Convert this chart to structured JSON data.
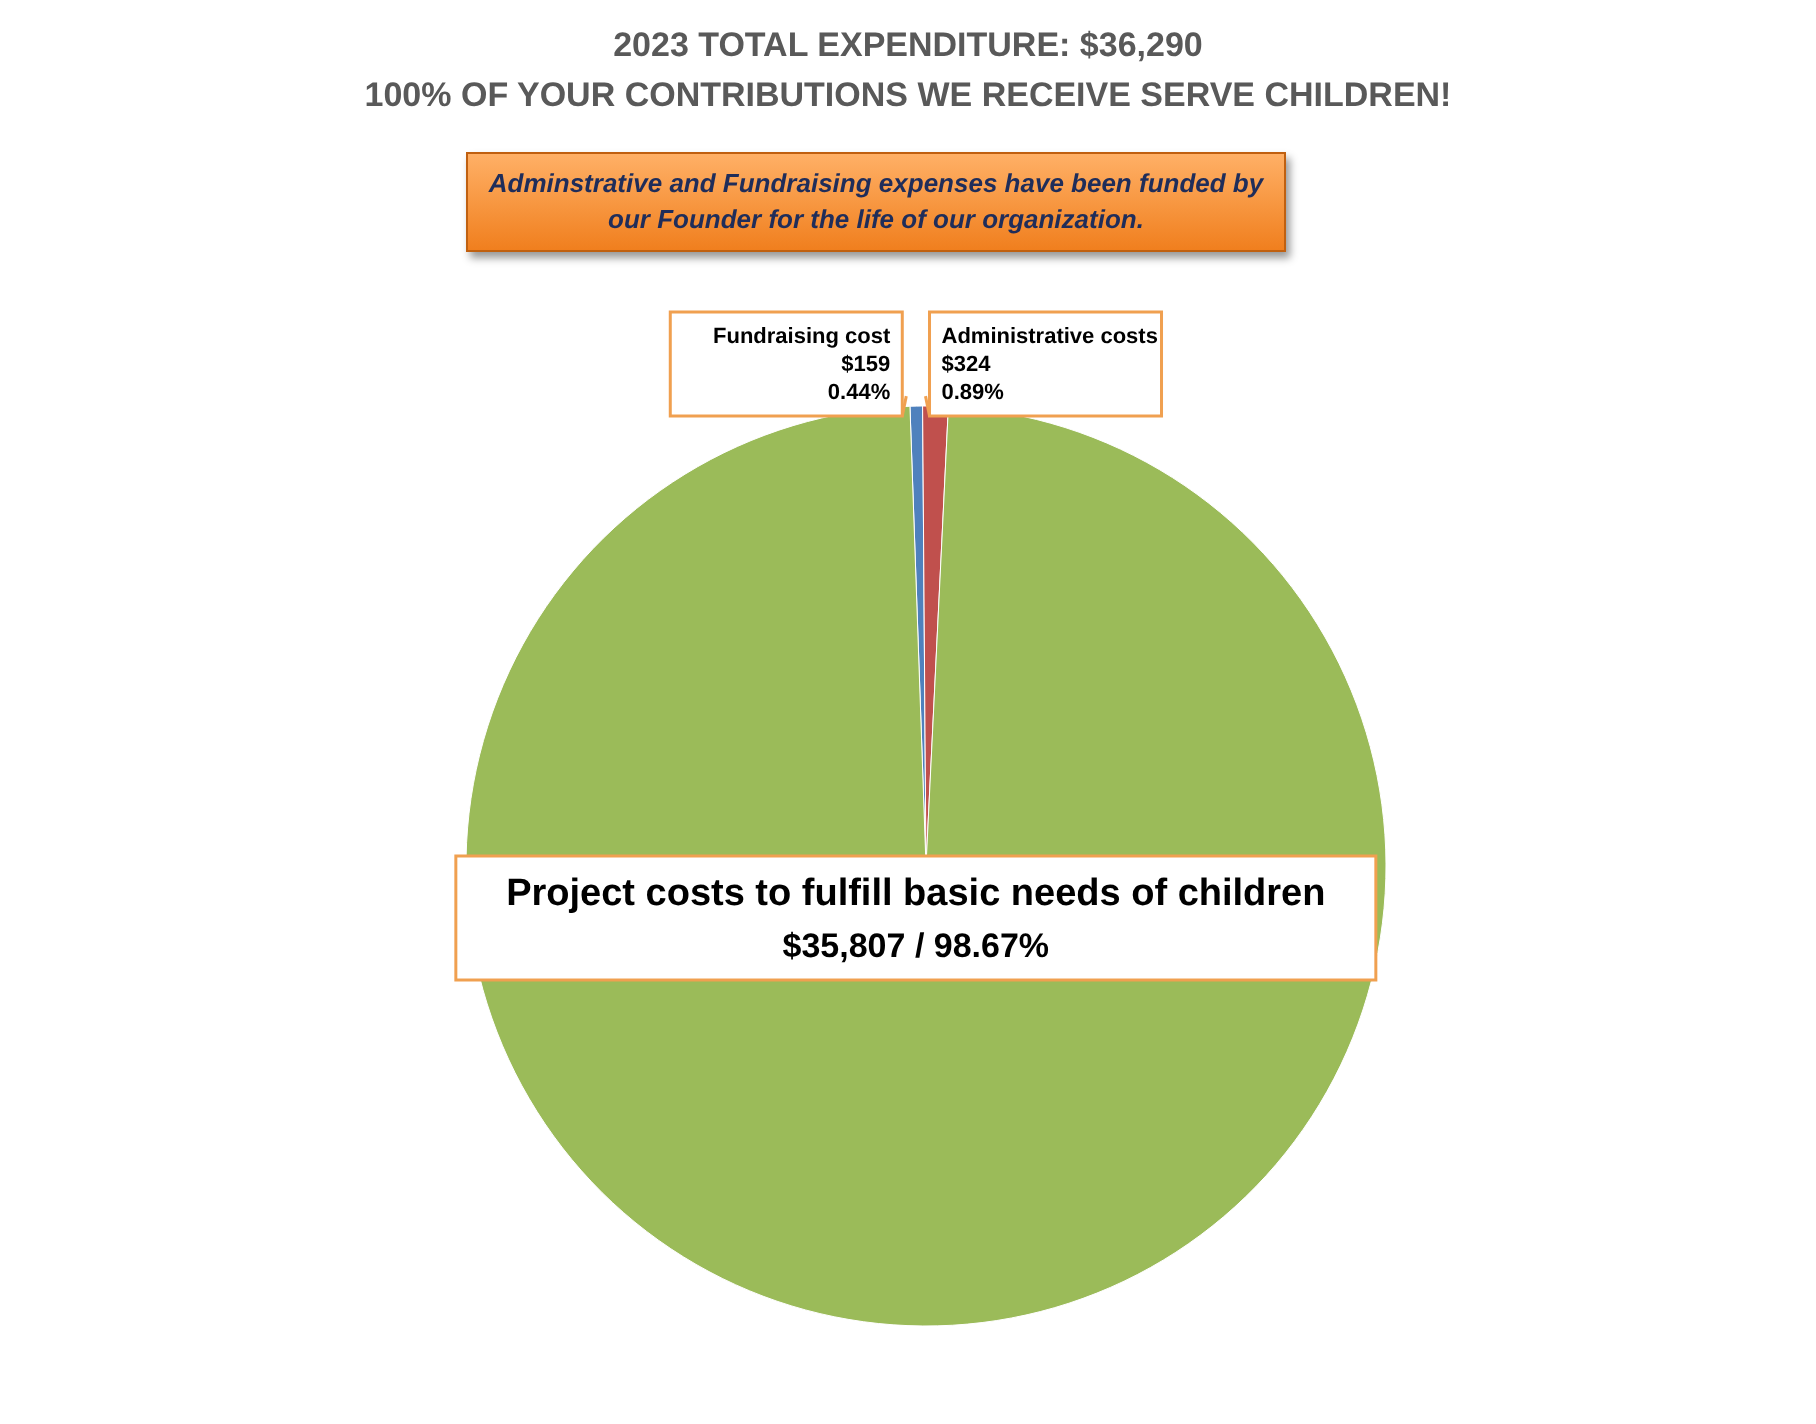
{
  "chart_data": {
    "type": "pie",
    "title": "2023 TOTAL EXPENDITURE: $36,290",
    "subtitle": "100% OF YOUR CONTRIBUTIONS WE RECEIVE SERVE CHILDREN!",
    "annotations": [
      "Adminstrative and Fundraising expenses have been funded by our Founder for the life of our organization."
    ],
    "categories": [
      "Fundraising cost",
      "Administrative costs",
      "Project costs to fulfill basic needs of children"
    ],
    "values": [
      159,
      324,
      35807
    ],
    "colors": [
      "#4f81bd",
      "#c0504d",
      "#9bbb59"
    ],
    "value_labels": [
      "$159\n0.44%",
      "$324\n0.89%",
      "$35,807  /  98.67%"
    ],
    "legend": false
  }
}
